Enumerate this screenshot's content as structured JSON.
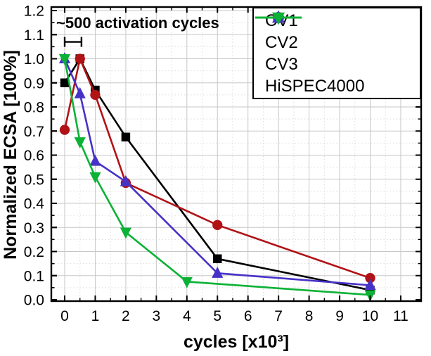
{
  "chart": {
    "annotation": "~500 activation cycles",
    "xlabel": "cycles [x10³]",
    "ylabel": "Normalized ECSA [100%]"
  },
  "chart_data": {
    "type": "line",
    "title": "",
    "xlabel": "cycles [x10³]",
    "ylabel": "Normalized ECSA [100%]",
    "xlim": [
      -0.45,
      11.7
    ],
    "ylim": [
      0.0,
      1.22
    ],
    "grid": true,
    "legend_position": "top-right-inside",
    "x_tick_labels": [
      "0",
      "1",
      "2",
      "3",
      "4",
      "5",
      "6",
      "7",
      "8",
      "9",
      "10",
      "11"
    ],
    "y_tick_labels": [
      "0.0",
      "0.1",
      "0.2",
      "0.3",
      "0.4",
      "0.5",
      "0.6",
      "0.7",
      "0.8",
      "0.9",
      "1.0",
      "1.1",
      "1.2"
    ],
    "x_minor_step": 0.5,
    "y_minor_step": 0.05,
    "annotation": "~500 activation cycles",
    "annotation_bracket": {
      "x1": 0.0,
      "x2": 0.55,
      "y": 1.07
    },
    "series": [
      {
        "name": "CV1",
        "color": "#000000",
        "marker": "square",
        "points": [
          [
            0,
            0.9
          ],
          [
            0.5,
            1.0
          ],
          [
            1,
            0.87
          ],
          [
            2,
            0.675
          ],
          [
            5,
            0.17
          ],
          [
            10,
            0.04
          ]
        ]
      },
      {
        "name": "CV2",
        "color": "#b11216",
        "marker": "circle",
        "points": [
          [
            0,
            0.705
          ],
          [
            0.5,
            1.0
          ],
          [
            1,
            0.85
          ],
          [
            2,
            0.485
          ],
          [
            5,
            0.31
          ],
          [
            10,
            0.09
          ]
        ]
      },
      {
        "name": "CV3",
        "color": "#4732c8",
        "marker": "triangle-up",
        "points": [
          [
            0,
            1.0
          ],
          [
            0.5,
            0.855
          ],
          [
            1,
            0.575
          ],
          [
            2,
            0.49
          ],
          [
            5,
            0.11
          ],
          [
            10,
            0.06
          ]
        ]
      },
      {
        "name": "HiSPEC4000",
        "color": "#0cb235",
        "marker": "triangle-down",
        "points": [
          [
            0,
            1.0
          ],
          [
            0.5,
            0.655
          ],
          [
            1,
            0.51
          ],
          [
            2,
            0.28
          ],
          [
            4,
            0.075
          ],
          [
            10,
            0.02
          ]
        ]
      }
    ]
  }
}
